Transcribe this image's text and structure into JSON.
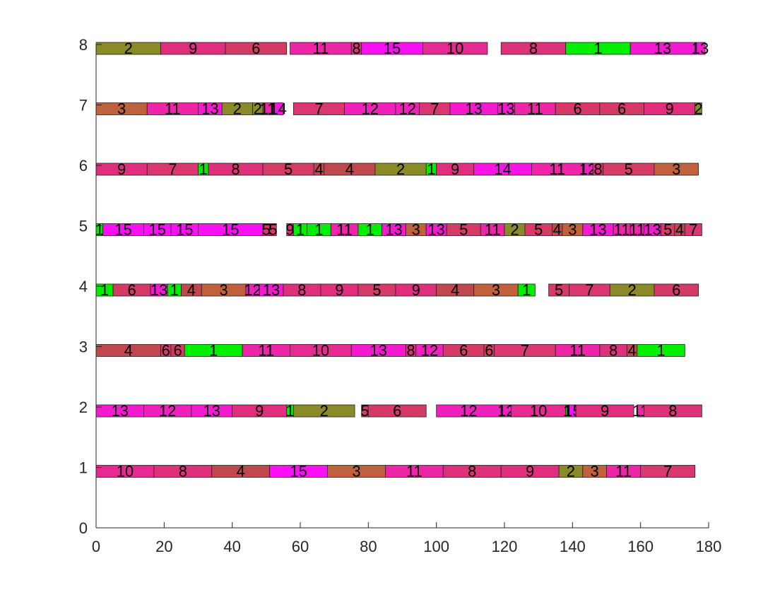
{
  "chart_data": {
    "type": "bar",
    "subtype": "gantt",
    "title": "",
    "xlabel": "",
    "ylabel": "",
    "xlim": [
      0,
      180
    ],
    "ylim": [
      0,
      8
    ],
    "xticks": [
      0,
      20,
      40,
      60,
      80,
      100,
      120,
      140,
      160,
      180
    ],
    "yticks": [
      0,
      1,
      2,
      3,
      4,
      5,
      6,
      7,
      8
    ],
    "grid": false,
    "legend": "none",
    "job_colors": {
      "1": "#00ee00",
      "2": "#8a8a28",
      "3": "#c0603c",
      "4": "#c0484c",
      "5": "#d63a66",
      "6": "#d53a66",
      "7": "#d93672",
      "8": "#dd317a",
      "9": "#e02d7e",
      "10": "#e62a92",
      "11": "#ec26a6",
      "12": "#f020bd",
      "13": "#f41ad0",
      "14": "#f814e4",
      "15": "#fa10f5"
    },
    "rows": [
      {
        "y": 1,
        "tasks": [
          {
            "job": "10",
            "start": 0,
            "end": 17
          },
          {
            "job": "8",
            "start": 17,
            "end": 34
          },
          {
            "job": "4",
            "start": 34,
            "end": 51
          },
          {
            "job": "15",
            "start": 51,
            "end": 68
          },
          {
            "job": "3",
            "start": 68,
            "end": 85
          },
          {
            "job": "11",
            "start": 85,
            "end": 102
          },
          {
            "job": "8",
            "start": 102,
            "end": 119
          },
          {
            "job": "9",
            "start": 119,
            "end": 136
          },
          {
            "job": "2",
            "start": 136,
            "end": 143
          },
          {
            "job": "3",
            "start": 143,
            "end": 150
          },
          {
            "job": "11",
            "start": 150,
            "end": 160
          },
          {
            "job": "7",
            "start": 160,
            "end": 176
          }
        ]
      },
      {
        "y": 2,
        "tasks": [
          {
            "job": "13",
            "start": 0,
            "end": 14
          },
          {
            "job": "12",
            "start": 14,
            "end": 28
          },
          {
            "job": "13",
            "start": 28,
            "end": 40
          },
          {
            "job": "9",
            "start": 40,
            "end": 56
          },
          {
            "job": "1",
            "start": 56,
            "end": 58
          },
          {
            "job": "2",
            "start": 58,
            "end": 76
          },
          {
            "job": "5",
            "start": 78,
            "end": 80
          },
          {
            "job": "6",
            "start": 80,
            "end": 97
          },
          {
            "job": "12",
            "start": 100,
            "end": 119
          },
          {
            "job": "12",
            "start": 119,
            "end": 122
          },
          {
            "job": "10",
            "start": 122,
            "end": 138
          },
          {
            "job": "1",
            "start": 138,
            "end": 139
          },
          {
            "job": "15",
            "start": 139,
            "end": 141
          },
          {
            "job": "9",
            "start": 141,
            "end": 158
          },
          {
            "job": "11",
            "start": 159,
            "end": 161
          },
          {
            "job": "8",
            "start": 161,
            "end": 178
          }
        ]
      },
      {
        "y": 3,
        "tasks": [
          {
            "job": "4",
            "start": 0,
            "end": 19
          },
          {
            "job": "6",
            "start": 19,
            "end": 22
          },
          {
            "job": "6",
            "start": 22,
            "end": 26
          },
          {
            "job": "1",
            "start": 26,
            "end": 43
          },
          {
            "job": "11",
            "start": 43,
            "end": 57
          },
          {
            "job": "10",
            "start": 57,
            "end": 75
          },
          {
            "job": "13",
            "start": 75,
            "end": 91
          },
          {
            "job": "8",
            "start": 91,
            "end": 94
          },
          {
            "job": "12",
            "start": 94,
            "end": 102
          },
          {
            "job": "6",
            "start": 102,
            "end": 114
          },
          {
            "job": "6",
            "start": 114,
            "end": 117
          },
          {
            "job": "7",
            "start": 117,
            "end": 135
          },
          {
            "job": "11",
            "start": 135,
            "end": 148
          },
          {
            "job": "8",
            "start": 148,
            "end": 156
          },
          {
            "job": "4",
            "start": 156,
            "end": 159
          },
          {
            "job": "1",
            "start": 159,
            "end": 173
          }
        ]
      },
      {
        "y": 4,
        "tasks": [
          {
            "job": "1",
            "start": 0,
            "end": 5
          },
          {
            "job": "6",
            "start": 5,
            "end": 16
          },
          {
            "job": "13",
            "start": 16,
            "end": 21
          },
          {
            "job": "1",
            "start": 21,
            "end": 25
          },
          {
            "job": "4",
            "start": 25,
            "end": 31
          },
          {
            "job": "3",
            "start": 31,
            "end": 44
          },
          {
            "job": "12",
            "start": 44,
            "end": 48
          },
          {
            "job": "13",
            "start": 48,
            "end": 55
          },
          {
            "job": "8",
            "start": 55,
            "end": 66
          },
          {
            "job": "9",
            "start": 66,
            "end": 77
          },
          {
            "job": "5",
            "start": 77,
            "end": 88
          },
          {
            "job": "9",
            "start": 88,
            "end": 100
          },
          {
            "job": "4",
            "start": 100,
            "end": 111
          },
          {
            "job": "3",
            "start": 111,
            "end": 124
          },
          {
            "job": "1",
            "start": 124,
            "end": 129
          },
          {
            "job": "5",
            "start": 133,
            "end": 139
          },
          {
            "job": "7",
            "start": 139,
            "end": 151
          },
          {
            "job": "2",
            "start": 151,
            "end": 164
          },
          {
            "job": "6",
            "start": 164,
            "end": 177
          }
        ]
      },
      {
        "y": 5,
        "tasks": [
          {
            "job": "1",
            "start": 0,
            "end": 2
          },
          {
            "job": "15",
            "start": 2,
            "end": 14
          },
          {
            "job": "15",
            "start": 14,
            "end": 22
          },
          {
            "job": "15",
            "start": 22,
            "end": 30
          },
          {
            "job": "15",
            "start": 30,
            "end": 49
          },
          {
            "job": "5",
            "start": 49,
            "end": 51
          },
          {
            "job": "5",
            "start": 51,
            "end": 53
          },
          {
            "job": "9",
            "start": 56,
            "end": 58
          },
          {
            "job": "1",
            "start": 58,
            "end": 62
          },
          {
            "job": "1",
            "start": 62,
            "end": 69
          },
          {
            "job": "11",
            "start": 69,
            "end": 77
          },
          {
            "job": "1",
            "start": 77,
            "end": 84
          },
          {
            "job": "13",
            "start": 84,
            "end": 91
          },
          {
            "job": "3",
            "start": 91,
            "end": 97
          },
          {
            "job": "13",
            "start": 97,
            "end": 103
          },
          {
            "job": "5",
            "start": 103,
            "end": 113
          },
          {
            "job": "11",
            "start": 113,
            "end": 120
          },
          {
            "job": "2",
            "start": 120,
            "end": 126
          },
          {
            "job": "5",
            "start": 126,
            "end": 134
          },
          {
            "job": "4",
            "start": 134,
            "end": 137
          },
          {
            "job": "3",
            "start": 137,
            "end": 143
          },
          {
            "job": "13",
            "start": 143,
            "end": 152
          },
          {
            "job": "11",
            "start": 152,
            "end": 157
          },
          {
            "job": "11",
            "start": 157,
            "end": 161
          },
          {
            "job": "13",
            "start": 161,
            "end": 166
          },
          {
            "job": "5",
            "start": 166,
            "end": 170
          },
          {
            "job": "4",
            "start": 170,
            "end": 173
          },
          {
            "job": "7",
            "start": 173,
            "end": 178
          }
        ]
      },
      {
        "y": 6,
        "tasks": [
          {
            "job": "9",
            "start": 0,
            "end": 15
          },
          {
            "job": "7",
            "start": 15,
            "end": 30
          },
          {
            "job": "1",
            "start": 30,
            "end": 33
          },
          {
            "job": "8",
            "start": 33,
            "end": 49
          },
          {
            "job": "5",
            "start": 49,
            "end": 64
          },
          {
            "job": "4",
            "start": 64,
            "end": 67
          },
          {
            "job": "4",
            "start": 67,
            "end": 82
          },
          {
            "job": "2",
            "start": 82,
            "end": 97
          },
          {
            "job": "1",
            "start": 97,
            "end": 100
          },
          {
            "job": "9",
            "start": 100,
            "end": 111
          },
          {
            "job": "14",
            "start": 111,
            "end": 128
          },
          {
            "job": "11",
            "start": 128,
            "end": 143
          },
          {
            "job": "12",
            "start": 143,
            "end": 146
          },
          {
            "job": "8",
            "start": 146,
            "end": 149
          },
          {
            "job": "5",
            "start": 149,
            "end": 164
          },
          {
            "job": "3",
            "start": 164,
            "end": 177
          }
        ]
      },
      {
        "y": 7,
        "tasks": [
          {
            "job": "3",
            "start": 0,
            "end": 15
          },
          {
            "job": "11",
            "start": 15,
            "end": 30
          },
          {
            "job": "13",
            "start": 30,
            "end": 37
          },
          {
            "job": "2",
            "start": 37,
            "end": 46
          },
          {
            "job": "2",
            "start": 46,
            "end": 49
          },
          {
            "job": "11",
            "start": 49,
            "end": 52
          },
          {
            "job": "14",
            "start": 52,
            "end": 55
          },
          {
            "job": "7",
            "start": 58,
            "end": 73
          },
          {
            "job": "12",
            "start": 73,
            "end": 88
          },
          {
            "job": "12",
            "start": 88,
            "end": 95
          },
          {
            "job": "7",
            "start": 95,
            "end": 104
          },
          {
            "job": "13",
            "start": 104,
            "end": 118
          },
          {
            "job": "13",
            "start": 118,
            "end": 123
          },
          {
            "job": "11",
            "start": 123,
            "end": 135
          },
          {
            "job": "6",
            "start": 135,
            "end": 148
          },
          {
            "job": "6",
            "start": 148,
            "end": 161
          },
          {
            "job": "9",
            "start": 161,
            "end": 176
          },
          {
            "job": "2",
            "start": 176,
            "end": 178
          }
        ]
      },
      {
        "y": 8,
        "tasks": [
          {
            "job": "2",
            "start": 0,
            "end": 19
          },
          {
            "job": "9",
            "start": 19,
            "end": 38
          },
          {
            "job": "6",
            "start": 38,
            "end": 56
          },
          {
            "job": "11",
            "start": 57,
            "end": 75
          },
          {
            "job": "8",
            "start": 75,
            "end": 78
          },
          {
            "job": "15",
            "start": 78,
            "end": 96
          },
          {
            "job": "10",
            "start": 96,
            "end": 115
          },
          {
            "job": "8",
            "start": 119,
            "end": 138
          },
          {
            "job": "1",
            "start": 138,
            "end": 157
          },
          {
            "job": "13",
            "start": 157,
            "end": 176
          },
          {
            "job": "13",
            "start": 176,
            "end": 179
          }
        ]
      }
    ]
  }
}
